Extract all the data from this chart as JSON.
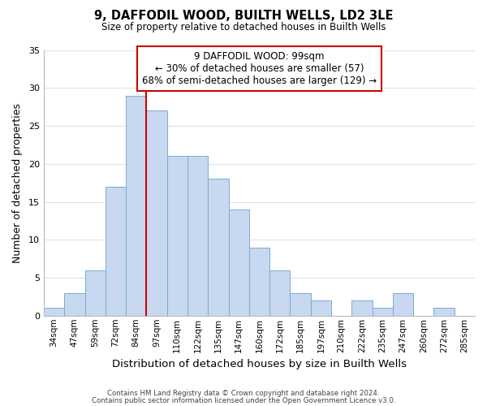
{
  "title": "9, DAFFODIL WOOD, BUILTH WELLS, LD2 3LE",
  "subtitle": "Size of property relative to detached houses in Builth Wells",
  "xlabel": "Distribution of detached houses by size in Builth Wells",
  "ylabel": "Number of detached properties",
  "bin_labels": [
    "34sqm",
    "47sqm",
    "59sqm",
    "72sqm",
    "84sqm",
    "97sqm",
    "110sqm",
    "122sqm",
    "135sqm",
    "147sqm",
    "160sqm",
    "172sqm",
    "185sqm",
    "197sqm",
    "210sqm",
    "222sqm",
    "235sqm",
    "247sqm",
    "260sqm",
    "272sqm",
    "285sqm"
  ],
  "bar_heights": [
    1,
    3,
    6,
    17,
    29,
    27,
    21,
    21,
    18,
    14,
    9,
    6,
    3,
    2,
    0,
    2,
    1,
    3,
    0,
    1,
    0
  ],
  "bar_color": "#c8d8f0",
  "bar_edge_color": "#7aaad0",
  "vline_x_index": 5,
  "vline_color": "#cc0000",
  "ylim": [
    0,
    35
  ],
  "yticks": [
    0,
    5,
    10,
    15,
    20,
    25,
    30,
    35
  ],
  "annotation_title": "9 DAFFODIL WOOD: 99sqm",
  "annotation_line1": "← 30% of detached houses are smaller (57)",
  "annotation_line2": "68% of semi-detached houses are larger (129) →",
  "annotation_box_color": "#ffffff",
  "annotation_box_edge": "#cc0000",
  "footer_line1": "Contains HM Land Registry data © Crown copyright and database right 2024.",
  "footer_line2": "Contains public sector information licensed under the Open Government Licence v3.0.",
  "background_color": "#ffffff",
  "grid_color": "#d8e4f0"
}
